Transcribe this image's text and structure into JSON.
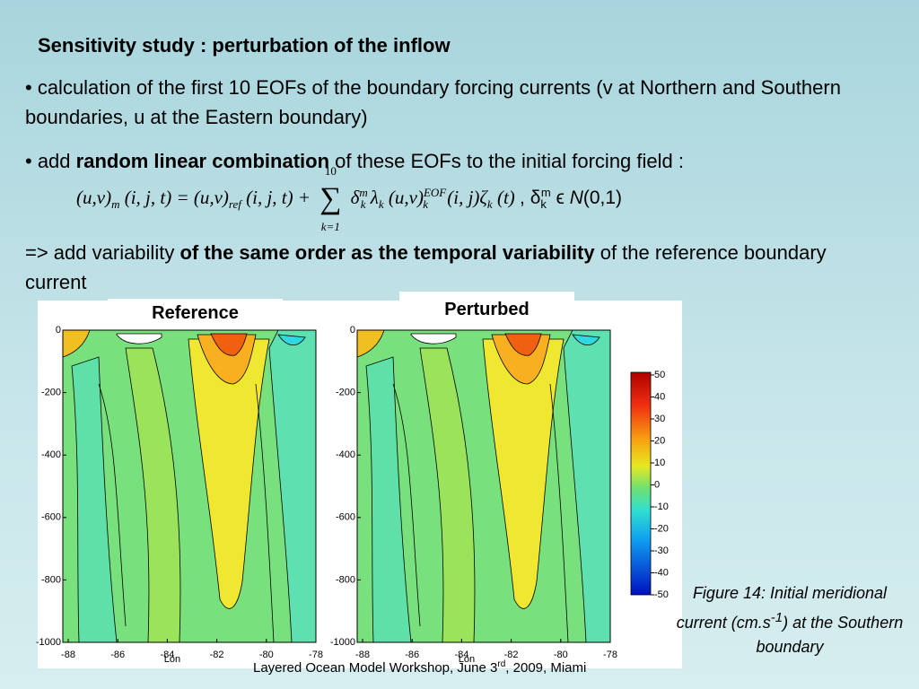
{
  "title": "Sensitivity study : perturbation of the inflow",
  "bullet1": "• calculation of the first 10 EOFs of the boundary forcing currents (v at Northern and Southern boundaries, u at the Eastern boundary)",
  "bullet2": [
    "• add ",
    "random linear combination",
    " of these EOFs to the initial forcing field :"
  ],
  "equation": [
    "(u,v)",
    "m",
    "(i, j, t) = (u,v)",
    "ref",
    "(i, j, t) +",
    "10",
    "∑",
    "k=1",
    "δ",
    "m",
    "k",
    "λ",
    "k",
    "(u,v)",
    "EOF",
    "k",
    "(i, j)ζ",
    "k",
    "(t)",
    ", δ",
    "k",
    "m",
    " ϵ ",
    "N",
    "(0,1)"
  ],
  "conclusion": [
    "=> add variability ",
    "of the same order as the temporal variability",
    " of the reference boundary current"
  ],
  "panels": [
    {
      "label": "Reference"
    },
    {
      "label": "Perturbed"
    }
  ],
  "depth_ticks": [
    0,
    -200,
    -400,
    -600,
    -800,
    -1000
  ],
  "lon_ticks": [
    -88,
    -86,
    -84,
    -82,
    -80,
    -78
  ],
  "lon_label": "Lon",
  "colorbar_ticks": [
    50,
    40,
    30,
    20,
    10,
    0,
    -10,
    -20,
    -30,
    -40,
    -50
  ],
  "caption": [
    "Figure 14: Initial meridional current (cm.s",
    "-1",
    ") at the Southern boundary"
  ],
  "footer": [
    "Layered Ocean Model Workshop, June 3",
    "rd",
    ", 2009, Miami"
  ]
}
